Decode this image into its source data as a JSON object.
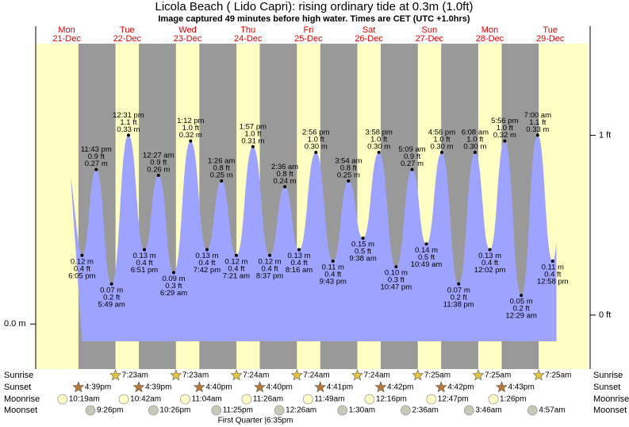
{
  "chart_data": {
    "type": "area",
    "title": "Licola Beach ( Lido Capri): rising  ordinary tide at 0.3m (1.0ft)",
    "subtitle": "Image captured 49 minutes before high water. Times are CET (UTC +1.0hrs)",
    "ylim": [
      -0.044,
      0.49
    ],
    "yticks": [
      {
        "value": 0,
        "label": "0.0 m"
      }
    ],
    "y2lim": [
      -0.19,
      1.51
    ],
    "y2ticks": [
      {
        "value": 1,
        "label": "1 ft"
      },
      {
        "value": 0,
        "label": "0 ft"
      }
    ],
    "color": "#9ea3ff",
    "day_color": "#ffffc4",
    "night_color": "#999999",
    "rows": {
      "sunrise": "Sunrise",
      "sunset": "Sunset",
      "moonrise": "Moonrise",
      "moonset": "Moonset"
    },
    "moon_phase": "First Quarter |6:35pm",
    "days": [
      {
        "name": "Mon",
        "date": "21-Dec",
        "sunset": "4:39pm",
        "moonrise": "10:19am",
        "moonset": "9:26pm",
        "tides": [
          {
            "time": "6:05 pm",
            "value": 0.12,
            "label": "0.12 m",
            "ft": "0.4 ft"
          },
          {
            "time": "11:43 pm",
            "value": 0.27,
            "label": "0.27 m",
            "ft": "0.9 ft"
          }
        ]
      },
      {
        "name": "Tue",
        "date": "22-Dec",
        "sunrise": "7:23am",
        "sunset": "4:39pm",
        "moonrise": "10:42am",
        "moonset": "10:26pm",
        "tides": [
          {
            "time": "5:49 am",
            "value": 0.07,
            "label": "0.07 m",
            "ft": "0.2 ft"
          },
          {
            "time": "12:31 pm",
            "value": 0.33,
            "label": "0.33 m",
            "ft": "1.1 ft"
          },
          {
            "time": "6:51 pm",
            "value": 0.13,
            "label": "0.13 m",
            "ft": "0.4 ft"
          }
        ]
      },
      {
        "name": "Wed",
        "date": "23-Dec",
        "sunrise": "7:23am",
        "sunset": "4:40pm",
        "moonrise": "11:04am",
        "moonset": "11:25pm",
        "tides": [
          {
            "time": "12:27 am",
            "value": 0.26,
            "label": "0.26 m",
            "ft": "0.9 ft"
          },
          {
            "time": "6:29 am",
            "value": 0.09,
            "label": "0.09 m",
            "ft": "0.3 ft"
          },
          {
            "time": "1:12 pm",
            "value": 0.32,
            "label": "0.32 m",
            "ft": "1.0 ft"
          },
          {
            "time": "7:42 pm",
            "value": 0.13,
            "label": "0.13 m",
            "ft": "0.4 ft"
          }
        ]
      },
      {
        "name": "Thu",
        "date": "24-Dec",
        "sunrise": "7:24am",
        "sunset": "4:40pm",
        "moonrise": "11:26am",
        "tides": [
          {
            "time": "1:26 am",
            "value": 0.25,
            "label": "0.25 m",
            "ft": "0.8 ft"
          },
          {
            "time": "7:21 am",
            "value": 0.12,
            "label": "0.12 m",
            "ft": "0.4 ft"
          },
          {
            "time": "1:57 pm",
            "value": 0.31,
            "label": "0.31 m",
            "ft": "1.0 ft"
          },
          {
            "time": "8:37 pm",
            "value": 0.12,
            "label": "0.12 m",
            "ft": "0.4 ft"
          }
        ]
      },
      {
        "name": "Fri",
        "date": "25-Dec",
        "sunrise": "7:24am",
        "sunset": "4:41pm",
        "moonrise": "11:49am",
        "moonset": "12:26am",
        "tides": [
          {
            "time": "2:36 am",
            "value": 0.24,
            "label": "0.24 m",
            "ft": "0.8 ft"
          },
          {
            "time": "8:16 am",
            "value": 0.13,
            "label": "0.13 m",
            "ft": "0.4 ft"
          },
          {
            "time": "2:56 pm",
            "value": 0.3,
            "label": "0.30 m",
            "ft": "1.0 ft"
          },
          {
            "time": "9:43 pm",
            "value": 0.11,
            "label": "0.11 m",
            "ft": "0.4 ft"
          }
        ]
      },
      {
        "name": "Sat",
        "date": "26-Dec",
        "sunrise": "7:24am",
        "sunset": "4:42pm",
        "moonrise": "12:16pm",
        "moonset": "1:30am",
        "tides": [
          {
            "time": "3:54 am",
            "value": 0.25,
            "label": "0.25 m",
            "ft": "0.8 ft"
          },
          {
            "time": "9:38 am",
            "value": 0.15,
            "label": "0.15 m",
            "ft": "0.5 ft"
          },
          {
            "time": "3:58 pm",
            "value": 0.3,
            "label": "0.30 m",
            "ft": "1.0 ft"
          },
          {
            "time": "10:47 pm",
            "value": 0.1,
            "label": "0.10 m",
            "ft": "0.3 ft"
          }
        ]
      },
      {
        "name": "Sun",
        "date": "27-Dec",
        "sunrise": "7:25am",
        "sunset": "4:42pm",
        "moonrise": "12:47pm",
        "moonset": "2:36am",
        "tides": [
          {
            "time": "5:09 am",
            "value": 0.27,
            "label": "0.27 m",
            "ft": "0.9 ft"
          },
          {
            "time": "10:49 am",
            "value": 0.14,
            "label": "0.14 m",
            "ft": "0.5 ft"
          },
          {
            "time": "4:56 pm",
            "value": 0.3,
            "label": "0.30 m",
            "ft": "1.0 ft"
          },
          {
            "time": "11:38 pm",
            "value": 0.07,
            "label": "0.07 m",
            "ft": "0.2 ft"
          }
        ]
      },
      {
        "name": "Mon",
        "date": "28-Dec",
        "sunrise": "7:25am",
        "sunset": "4:43pm",
        "moonrise": "1:26pm",
        "moonset": "3:46am",
        "tides": [
          {
            "time": "6:08 am",
            "value": 0.3,
            "label": "0.30 m",
            "ft": "1.0 ft"
          },
          {
            "time": "12:02 pm",
            "value": 0.13,
            "label": "0.13 m",
            "ft": "0.4 ft"
          },
          {
            "time": "5:56 pm",
            "value": 0.32,
            "label": "0.32 m",
            "ft": "1.0 ft"
          }
        ]
      },
      {
        "name": "Tue",
        "date": "29-Dec",
        "sunrise": "7:25am",
        "moonset": "4:57am",
        "tides": [
          {
            "time": "12:29 am",
            "value": 0.05,
            "label": "0.05 m",
            "ft": "0.2 ft"
          },
          {
            "time": "7:00 am",
            "value": 0.33,
            "label": "0.33 m",
            "ft": "1.1 ft"
          },
          {
            "time": "12:58 pm",
            "value": 0.11,
            "label": "0.11 m",
            "ft": "0.4 ft"
          }
        ]
      }
    ]
  }
}
